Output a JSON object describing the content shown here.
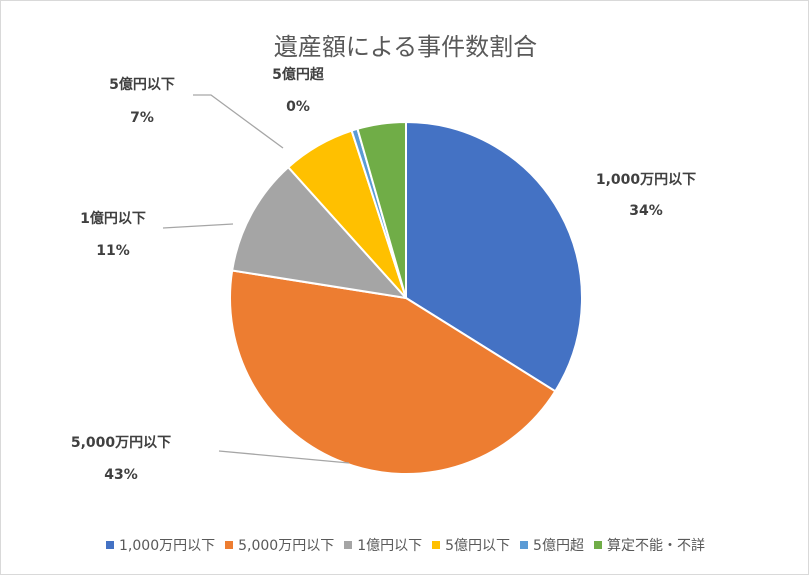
{
  "chart_data": {
    "type": "pie",
    "title": "遺産額による事件数割合",
    "categories": [
      "1,000万円以下",
      "5,000万円以下",
      "1億円以下",
      "5億円以下",
      "5億円超",
      "算定不能・不詳"
    ],
    "values": [
      34,
      43,
      11,
      7,
      0,
      5
    ],
    "value_labels": [
      "34%",
      "43%",
      "11%",
      "7%",
      "0%",
      ""
    ],
    "colors": [
      "#4472C4",
      "#ED7D31",
      "#A5A5A5",
      "#FFC000",
      "#5B9BD5",
      "#70AD47"
    ],
    "legend": "bottom"
  }
}
